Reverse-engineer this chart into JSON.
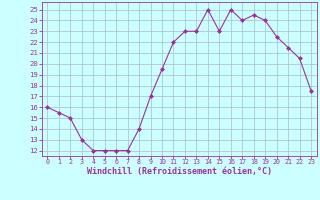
{
  "x": [
    0,
    1,
    2,
    3,
    4,
    5,
    6,
    7,
    8,
    9,
    10,
    11,
    12,
    13,
    14,
    15,
    16,
    17,
    18,
    19,
    20,
    21,
    22,
    23
  ],
  "y": [
    16,
    15.5,
    15,
    13,
    12,
    12,
    12,
    12,
    14,
    17,
    19.5,
    22,
    23,
    23,
    25,
    23,
    25,
    24,
    24.5,
    24,
    22.5,
    21.5,
    20.5,
    17.5
  ],
  "line_color": "#993399",
  "marker": "D",
  "marker_size": 2.0,
  "bg_color": "#ccffff",
  "grid_color": "#aabbcc",
  "xlabel": "Windchill (Refroidissement éolien,°C)",
  "xlabel_fontsize": 6.0,
  "xtick_fontsize": 4.8,
  "ytick_fontsize": 5.2,
  "ylim": [
    11.5,
    25.7
  ],
  "xlim": [
    -0.5,
    23.5
  ],
  "yticks": [
    12,
    13,
    14,
    15,
    16,
    17,
    18,
    19,
    20,
    21,
    22,
    23,
    24,
    25
  ],
  "xticks": [
    0,
    1,
    2,
    3,
    4,
    5,
    6,
    7,
    8,
    9,
    10,
    11,
    12,
    13,
    14,
    15,
    16,
    17,
    18,
    19,
    20,
    21,
    22,
    23
  ]
}
